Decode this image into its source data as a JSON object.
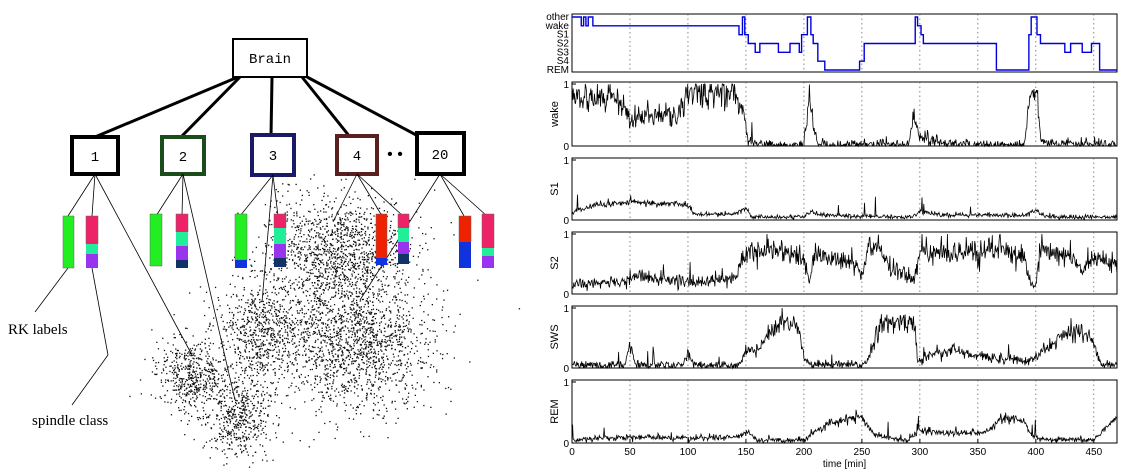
{
  "colors": {
    "blue_trace": "#0000dd",
    "black_trace": "#000000",
    "dotted_grid": "#555555",
    "bar_green": "#22ee22",
    "bar_red": "#ee2200",
    "bar_pink": "#ee2266",
    "bar_teal": "#22ee99",
    "bar_purple": "#9933ee",
    "bar_blue": "#1133dd",
    "bar_navy": "#113366"
  },
  "tree": {
    "root_label": "Brain",
    "nodes": [
      {
        "label": "1",
        "border": "#000000"
      },
      {
        "label": "2",
        "border": "#1a4d1a"
      },
      {
        "label": "3",
        "border": "#1a1a66"
      },
      {
        "label": "4",
        "border": "#5a2020"
      },
      {
        "label": "20",
        "border": "#000000"
      }
    ],
    "ellipsis": "• •",
    "annotations": {
      "rk_labels": "RK labels",
      "spindle_class": "spindle class"
    }
  },
  "chart_data": {
    "type": "line",
    "x_range": [
      0,
      470
    ],
    "xlabel": "time [min]",
    "x_ticks": [
      0,
      50,
      100,
      150,
      200,
      250,
      300,
      350,
      400,
      450
    ],
    "vertical_dotted_lines_at": [
      50,
      100,
      150,
      200,
      250,
      300,
      350,
      400,
      450
    ],
    "hypnogram": {
      "levels": [
        "other",
        "wake",
        "S1",
        "S2",
        "S3",
        "S4",
        "REM"
      ],
      "segments": [
        {
          "t": 0,
          "level": "other"
        },
        {
          "t": 8,
          "level": "wake"
        },
        {
          "t": 10,
          "level": "other"
        },
        {
          "t": 12,
          "level": "wake"
        },
        {
          "t": 14,
          "level": "other"
        },
        {
          "t": 18,
          "level": "wake"
        },
        {
          "t": 144,
          "level": "S1"
        },
        {
          "t": 147,
          "level": "other"
        },
        {
          "t": 149,
          "level": "S1"
        },
        {
          "t": 152,
          "level": "S2"
        },
        {
          "t": 158,
          "level": "S3"
        },
        {
          "t": 162,
          "level": "S2"
        },
        {
          "t": 178,
          "level": "S3"
        },
        {
          "t": 188,
          "level": "S2"
        },
        {
          "t": 196,
          "level": "S3"
        },
        {
          "t": 198,
          "level": "S1"
        },
        {
          "t": 203,
          "level": "other"
        },
        {
          "t": 206,
          "level": "S1"
        },
        {
          "t": 208,
          "level": "S2"
        },
        {
          "t": 212,
          "level": "S4"
        },
        {
          "t": 218,
          "level": "REM"
        },
        {
          "t": 248,
          "level": "S4"
        },
        {
          "t": 252,
          "level": "S2"
        },
        {
          "t": 296,
          "level": "other"
        },
        {
          "t": 298,
          "level": "wake"
        },
        {
          "t": 301,
          "level": "S1"
        },
        {
          "t": 303,
          "level": "S2"
        },
        {
          "t": 366,
          "level": "REM"
        },
        {
          "t": 394,
          "level": "S1"
        },
        {
          "t": 396,
          "level": "other"
        },
        {
          "t": 401,
          "level": "S1"
        },
        {
          "t": 404,
          "level": "S2"
        },
        {
          "t": 425,
          "level": "S3"
        },
        {
          "t": 430,
          "level": "S2"
        },
        {
          "t": 440,
          "level": "S3"
        },
        {
          "t": 448,
          "level": "S2"
        },
        {
          "t": 455,
          "level": "REM"
        },
        {
          "t": 470,
          "level": "REM"
        }
      ]
    },
    "panels": [
      {
        "name": "wake",
        "ylim": [
          0,
          1
        ],
        "y_ticks": [
          0,
          1
        ],
        "profile": [
          [
            0,
            0.85
          ],
          [
            30,
            0.75
          ],
          [
            45,
            0.65
          ],
          [
            50,
            0.4
          ],
          [
            65,
            0.45
          ],
          [
            80,
            0.55
          ],
          [
            90,
            0.4
          ],
          [
            98,
            0.85
          ],
          [
            140,
            0.85
          ],
          [
            148,
            0.5
          ],
          [
            152,
            0.1
          ],
          [
            160,
            0.02
          ],
          [
            200,
            0.02
          ],
          [
            205,
            0.85
          ],
          [
            210,
            0.1
          ],
          [
            215,
            0.02
          ],
          [
            290,
            0.02
          ],
          [
            295,
            0.5
          ],
          [
            300,
            0.15
          ],
          [
            320,
            0.05
          ],
          [
            340,
            0.02
          ],
          [
            390,
            0.02
          ],
          [
            395,
            0.85
          ],
          [
            400,
            0.9
          ],
          [
            405,
            0.05
          ],
          [
            470,
            0.02
          ]
        ],
        "noise": 0.1
      },
      {
        "name": "S1",
        "ylim": [
          0,
          1
        ],
        "y_ticks": [
          0,
          1
        ],
        "profile": [
          [
            0,
            0.12
          ],
          [
            20,
            0.25
          ],
          [
            50,
            0.3
          ],
          [
            100,
            0.25
          ],
          [
            105,
            0.1
          ],
          [
            140,
            0.1
          ],
          [
            150,
            0.2
          ],
          [
            155,
            0.05
          ],
          [
            200,
            0.05
          ],
          [
            205,
            0.15
          ],
          [
            215,
            0.08
          ],
          [
            250,
            0.06
          ],
          [
            295,
            0.05
          ],
          [
            300,
            0.15
          ],
          [
            320,
            0.08
          ],
          [
            390,
            0.08
          ],
          [
            400,
            0.15
          ],
          [
            410,
            0.05
          ],
          [
            470,
            0.05
          ]
        ],
        "noise": 0.04
      },
      {
        "name": "S2",
        "ylim": [
          0,
          1
        ],
        "y_ticks": [
          0,
          1
        ],
        "profile": [
          [
            0,
            0.15
          ],
          [
            48,
            0.2
          ],
          [
            52,
            0.3
          ],
          [
            100,
            0.2
          ],
          [
            140,
            0.25
          ],
          [
            148,
            0.6
          ],
          [
            155,
            0.75
          ],
          [
            180,
            0.7
          ],
          [
            200,
            0.55
          ],
          [
            205,
            0.2
          ],
          [
            210,
            0.65
          ],
          [
            220,
            0.6
          ],
          [
            245,
            0.5
          ],
          [
            250,
            0.3
          ],
          [
            255,
            0.75
          ],
          [
            265,
            0.8
          ],
          [
            275,
            0.4
          ],
          [
            295,
            0.25
          ],
          [
            300,
            0.7
          ],
          [
            350,
            0.7
          ],
          [
            370,
            0.75
          ],
          [
            390,
            0.6
          ],
          [
            395,
            0.2
          ],
          [
            400,
            0.15
          ],
          [
            405,
            0.75
          ],
          [
            430,
            0.6
          ],
          [
            440,
            0.4
          ],
          [
            450,
            0.6
          ],
          [
            470,
            0.55
          ]
        ],
        "noise": 0.09
      },
      {
        "name": "SWS",
        "ylim": [
          0,
          1
        ],
        "y_ticks": [
          0,
          1
        ],
        "profile": [
          [
            0,
            0.05
          ],
          [
            45,
            0.05
          ],
          [
            50,
            0.35
          ],
          [
            55,
            0.05
          ],
          [
            95,
            0.05
          ],
          [
            100,
            0.25
          ],
          [
            105,
            0.05
          ],
          [
            145,
            0.05
          ],
          [
            150,
            0.3
          ],
          [
            160,
            0.3
          ],
          [
            170,
            0.6
          ],
          [
            180,
            0.75
          ],
          [
            195,
            0.7
          ],
          [
            200,
            0.2
          ],
          [
            205,
            0.05
          ],
          [
            210,
            0.05
          ],
          [
            250,
            0.05
          ],
          [
            255,
            0.15
          ],
          [
            265,
            0.7
          ],
          [
            280,
            0.75
          ],
          [
            295,
            0.8
          ],
          [
            298,
            0.1
          ],
          [
            310,
            0.25
          ],
          [
            330,
            0.3
          ],
          [
            345,
            0.2
          ],
          [
            380,
            0.15
          ],
          [
            395,
            0.1
          ],
          [
            420,
            0.5
          ],
          [
            440,
            0.65
          ],
          [
            450,
            0.4
          ],
          [
            455,
            0.1
          ],
          [
            470,
            0.05
          ]
        ],
        "noise": 0.08
      },
      {
        "name": "REM",
        "ylim": [
          0,
          1
        ],
        "y_ticks": [
          0,
          1
        ],
        "profile": [
          [
            0,
            0.05
          ],
          [
            50,
            0.1
          ],
          [
            100,
            0.08
          ],
          [
            145,
            0.1
          ],
          [
            150,
            0.2
          ],
          [
            160,
            0.05
          ],
          [
            200,
            0.05
          ],
          [
            210,
            0.2
          ],
          [
            220,
            0.3
          ],
          [
            240,
            0.4
          ],
          [
            250,
            0.45
          ],
          [
            255,
            0.25
          ],
          [
            265,
            0.1
          ],
          [
            290,
            0.05
          ],
          [
            300,
            0.2
          ],
          [
            330,
            0.15
          ],
          [
            360,
            0.2
          ],
          [
            370,
            0.4
          ],
          [
            390,
            0.35
          ],
          [
            395,
            0.15
          ],
          [
            405,
            0.05
          ],
          [
            450,
            0.05
          ],
          [
            460,
            0.25
          ],
          [
            470,
            0.4
          ]
        ],
        "noise": 0.05
      }
    ]
  }
}
